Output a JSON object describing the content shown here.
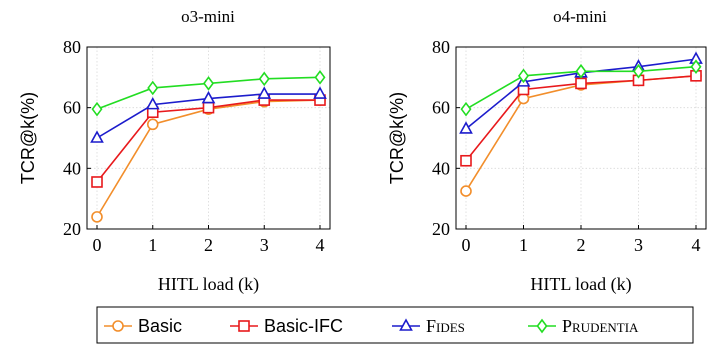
{
  "chart_data": [
    {
      "type": "line",
      "title": "o3-mini",
      "xlabel": "HITL load (k)",
      "ylabel": "TCR@k(%)",
      "x": [
        0,
        1,
        2,
        3,
        4
      ],
      "ylim": [
        20,
        80
      ],
      "yticks": [
        20,
        40,
        60,
        80
      ],
      "grid": true,
      "series": [
        {
          "name": "Basic",
          "color": "#f28e2b",
          "marker": "circle",
          "values": [
            24,
            54.5,
            59.5,
            62,
            62.5
          ]
        },
        {
          "name": "Basic-IFC",
          "color": "#e8191c",
          "marker": "square",
          "values": [
            35.5,
            58.5,
            60,
            62.5,
            62.5
          ]
        },
        {
          "name": "Fides",
          "color": "#1c1ccc",
          "marker": "triangle",
          "values": [
            50,
            61,
            63,
            64.5,
            64.5
          ]
        },
        {
          "name": "Prudentia",
          "color": "#22dd22",
          "marker": "diamond",
          "values": [
            59.5,
            66.5,
            68,
            69.5,
            70
          ]
        }
      ]
    },
    {
      "type": "line",
      "title": "o4-mini",
      "xlabel": "HITL load (k)",
      "ylabel": "TCR@k(%)",
      "x": [
        0,
        1,
        2,
        3,
        4
      ],
      "ylim": [
        20,
        80
      ],
      "yticks": [
        20,
        40,
        60,
        80
      ],
      "grid": true,
      "series": [
        {
          "name": "Basic",
          "color": "#f28e2b",
          "marker": "circle",
          "values": [
            32.5,
            63,
            67.5,
            69,
            70.5
          ]
        },
        {
          "name": "Basic-IFC",
          "color": "#e8191c",
          "marker": "square",
          "values": [
            42.5,
            66,
            68,
            69,
            70.5
          ]
        },
        {
          "name": "Fides",
          "color": "#1c1ccc",
          "marker": "triangle",
          "values": [
            53,
            68.5,
            71.5,
            73.5,
            76
          ]
        },
        {
          "name": "Prudentia",
          "color": "#22dd22",
          "marker": "diamond",
          "values": [
            59.5,
            70.5,
            72,
            72,
            73.5
          ]
        }
      ]
    }
  ],
  "legend": {
    "placement": "bottom-center",
    "entries": [
      "Basic",
      "Basic-IFC",
      "Fides",
      "Prudentia"
    ]
  }
}
